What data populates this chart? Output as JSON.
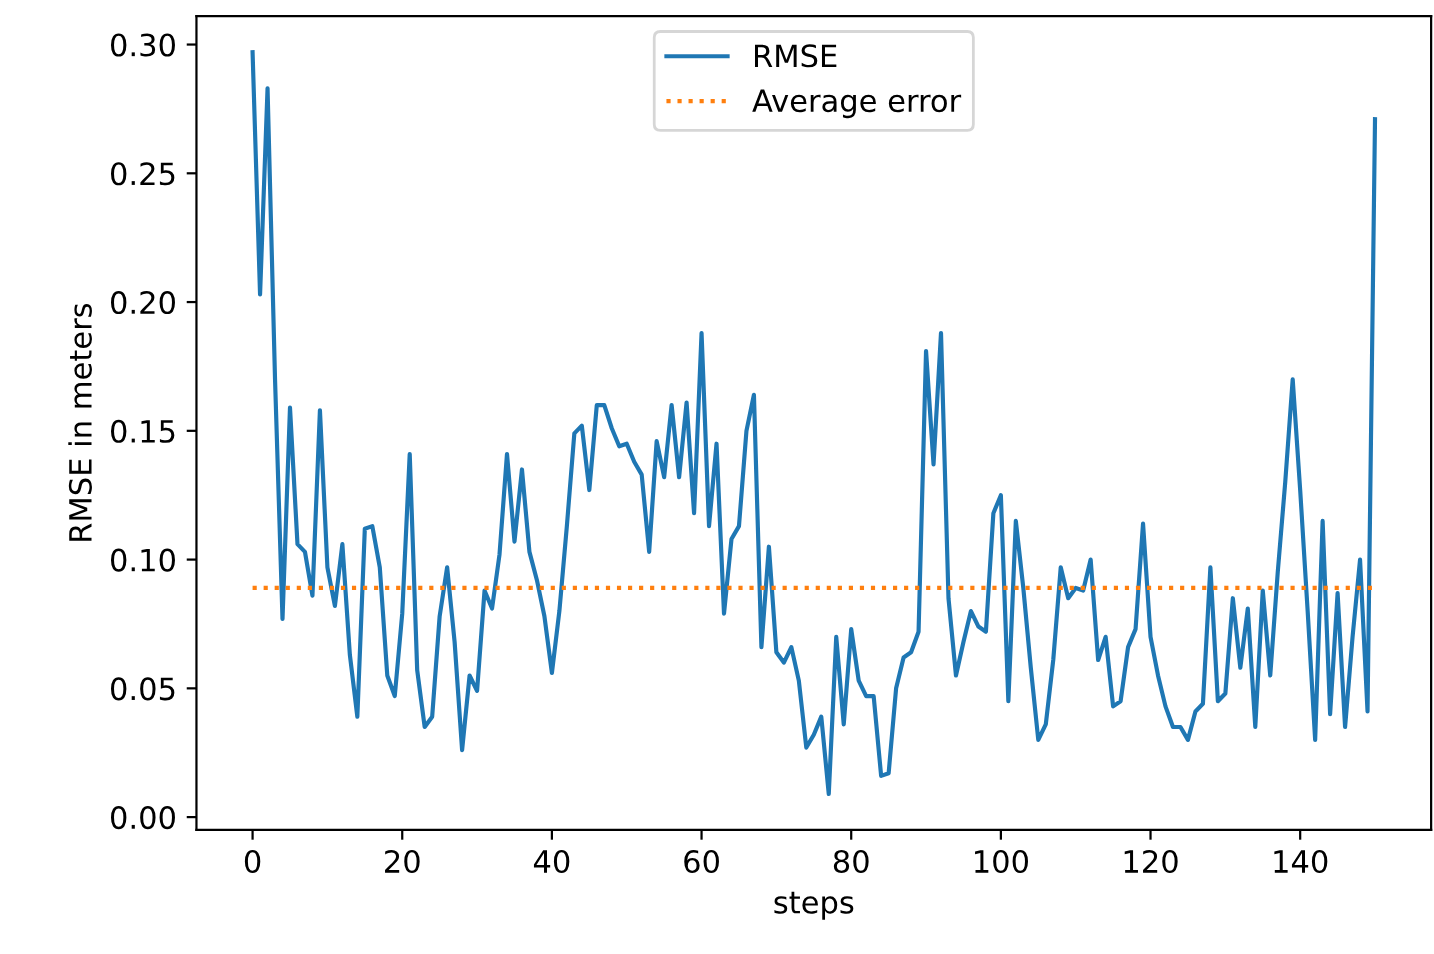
{
  "chart_data": {
    "type": "line",
    "xlabel": "steps",
    "ylabel": "RMSE in meters",
    "series": [
      {
        "name": "RMSE",
        "color": "#1f77b4",
        "line_style": "solid",
        "x": [
          0,
          1,
          2,
          3,
          4,
          5,
          6,
          7,
          8,
          9,
          10,
          11,
          12,
          13,
          14,
          15,
          16,
          17,
          18,
          19,
          20,
          21,
          22,
          23,
          24,
          25,
          26,
          27,
          28,
          29,
          30,
          31,
          32,
          33,
          34,
          35,
          36,
          37,
          38,
          39,
          40,
          41,
          42,
          43,
          44,
          45,
          46,
          47,
          48,
          49,
          50,
          51,
          52,
          53,
          54,
          55,
          56,
          57,
          58,
          59,
          60,
          61,
          62,
          63,
          64,
          65,
          66,
          67,
          68,
          69,
          70,
          71,
          72,
          73,
          74,
          75,
          76,
          77,
          78,
          79,
          80,
          81,
          82,
          83,
          84,
          85,
          86,
          87,
          88,
          89,
          90,
          91,
          92,
          93,
          94,
          95,
          96,
          97,
          98,
          99,
          100,
          101,
          102,
          103,
          104,
          105,
          106,
          107,
          108,
          109,
          110,
          111,
          112,
          113,
          114,
          115,
          116,
          117,
          118,
          119,
          120,
          121,
          122,
          123,
          124,
          125,
          126,
          127,
          128,
          129,
          130,
          131,
          132,
          133,
          134,
          135,
          136,
          137,
          138,
          139,
          140,
          141,
          142,
          143,
          144,
          145,
          146,
          147,
          148,
          149,
          150
        ],
        "values": [
          0.297,
          0.203,
          0.283,
          0.17,
          0.077,
          0.159,
          0.106,
          0.103,
          0.086,
          0.158,
          0.097,
          0.082,
          0.106,
          0.063,
          0.039,
          0.112,
          0.113,
          0.097,
          0.055,
          0.047,
          0.079,
          0.141,
          0.057,
          0.035,
          0.039,
          0.078,
          0.097,
          0.068,
          0.026,
          0.055,
          0.049,
          0.088,
          0.081,
          0.102,
          0.141,
          0.107,
          0.135,
          0.103,
          0.092,
          0.078,
          0.056,
          0.08,
          0.113,
          0.149,
          0.152,
          0.127,
          0.16,
          0.16,
          0.151,
          0.144,
          0.145,
          0.138,
          0.133,
          0.103,
          0.146,
          0.132,
          0.16,
          0.132,
          0.161,
          0.118,
          0.188,
          0.113,
          0.145,
          0.079,
          0.108,
          0.113,
          0.15,
          0.164,
          0.066,
          0.105,
          0.064,
          0.06,
          0.066,
          0.053,
          0.027,
          0.032,
          0.039,
          0.009,
          0.07,
          0.036,
          0.073,
          0.053,
          0.047,
          0.047,
          0.016,
          0.017,
          0.05,
          0.062,
          0.064,
          0.072,
          0.181,
          0.137,
          0.188,
          0.085,
          0.055,
          0.068,
          0.08,
          0.074,
          0.072,
          0.118,
          0.125,
          0.045,
          0.115,
          0.089,
          0.058,
          0.03,
          0.036,
          0.061,
          0.097,
          0.085,
          0.089,
          0.088,
          0.1,
          0.061,
          0.07,
          0.043,
          0.045,
          0.066,
          0.073,
          0.114,
          0.07,
          0.055,
          0.043,
          0.035,
          0.035,
          0.03,
          0.041,
          0.044,
          0.097,
          0.045,
          0.048,
          0.085,
          0.058,
          0.081,
          0.035,
          0.088,
          0.055,
          0.095,
          0.13,
          0.17,
          0.127,
          0.08,
          0.03,
          0.115,
          0.04,
          0.087,
          0.035,
          0.07,
          0.1,
          0.041,
          0.271
        ]
      },
      {
        "name": "Average error",
        "color": "#ff7f0e",
        "line_style": "dotted",
        "x": [
          0,
          150
        ],
        "values": [
          0.089,
          0.089
        ]
      }
    ],
    "xlim": [
      -7.5,
      157.5
    ],
    "xticks": [
      0,
      20,
      40,
      60,
      80,
      100,
      120,
      140
    ],
    "ylim": [
      -0.005,
      0.311
    ],
    "yticks": [
      {
        "value": 0,
        "label": "0.00"
      },
      {
        "value": 0.05,
        "label": "0.05"
      },
      {
        "value": 0.1,
        "label": "0.10"
      },
      {
        "value": 0.15,
        "label": "0.15"
      },
      {
        "value": 0.2,
        "label": "0.20"
      },
      {
        "value": 0.25,
        "label": "0.25"
      },
      {
        "value": 0.3,
        "label": "0.30"
      }
    ],
    "legend": "top",
    "grid": false,
    "marker": "none"
  }
}
